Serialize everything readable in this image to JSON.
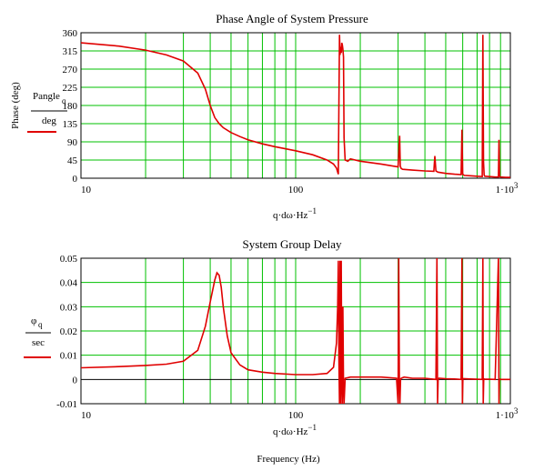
{
  "colors": {
    "grid": "#00c000",
    "axis": "#000000",
    "trace": "#e00000",
    "background": "#ffffff"
  },
  "chart_data": [
    {
      "type": "line",
      "title": "Phase Angle of System Pressure",
      "ylabel": "Phase (deg)",
      "legend_label_top": "Pangle",
      "legend_label_sub": "q",
      "legend_label_bottom": "deg",
      "xlabel": "q·dω·Hz",
      "xlabel_exp": "−1",
      "x_scale": "log",
      "xlim": [
        10,
        1000
      ],
      "ylim": [
        0,
        360
      ],
      "y_ticks": [
        0,
        45,
        90,
        135,
        180,
        225,
        270,
        315,
        360
      ],
      "y_tick_labels": [
        "0",
        "45",
        "90",
        "135",
        "180",
        "225",
        "270",
        "315",
        "360"
      ],
      "x_tick_labels": [
        "10",
        "100",
        "1·10"
      ],
      "x_tick_last_exp": "3",
      "grid": true,
      "series": [
        {
          "x": [
            10,
            15,
            20,
            25,
            30,
            35,
            38,
            40,
            42,
            44,
            46,
            50,
            55,
            60,
            70,
            80,
            100,
            120,
            140,
            150,
            155,
            158,
            160,
            161,
            162,
            163,
            164,
            165,
            166,
            167,
            168,
            170,
            175,
            180,
            200,
            250,
            300,
            305,
            307,
            310,
            315,
            350,
            400,
            440,
            445,
            450,
            460,
            500,
            550,
            590,
            595,
            600,
            610,
            650,
            700,
            740,
            745,
            750,
            755,
            760,
            800,
            850,
            880,
            885,
            890,
            900,
            950,
            1000
          ],
          "y": [
            335,
            327,
            317,
            305,
            290,
            260,
            220,
            180,
            150,
            135,
            125,
            113,
            103,
            95,
            85,
            78,
            68,
            58,
            45,
            35,
            25,
            10,
            355,
            305,
            325,
            310,
            335,
            330,
            320,
            300,
            100,
            45,
            42,
            48,
            42,
            35,
            28,
            105,
            30,
            24,
            22,
            20,
            18,
            17,
            55,
            18,
            15,
            12,
            10,
            9,
            120,
            10,
            7,
            6,
            5,
            4,
            355,
            40,
            8,
            5,
            4,
            3,
            3,
            95,
            5,
            3,
            2,
            2
          ]
        }
      ]
    },
    {
      "type": "line",
      "title": "System Group Delay",
      "legend_label_top": "φ",
      "legend_label_sub": "q",
      "legend_label_bottom": "sec",
      "xlabel": "q·dω·Hz",
      "xlabel_exp": "−1",
      "x_scale": "log",
      "xlim": [
        10,
        1000
      ],
      "ylim": [
        -0.01,
        0.05
      ],
      "y_ticks": [
        -0.01,
        0,
        0.01,
        0.02,
        0.03,
        0.04,
        0.05
      ],
      "y_tick_labels": [
        "-0.01",
        "0",
        "0.01",
        "0.02",
        "0.03",
        "0.04",
        "0.05"
      ],
      "x_tick_labels": [
        "10",
        "100",
        "1·10"
      ],
      "x_tick_last_exp": "3",
      "grid": true,
      "series": [
        {
          "x": [
            10,
            15,
            20,
            25,
            30,
            35,
            38,
            40,
            42,
            43,
            44,
            45,
            46,
            48,
            50,
            55,
            60,
            70,
            80,
            100,
            120,
            140,
            150,
            155,
            157,
            158,
            159,
            160,
            161,
            162,
            163,
            164,
            165,
            166,
            167,
            168,
            170,
            180,
            200,
            250,
            295,
            300,
            302,
            304,
            306,
            308,
            310,
            320,
            350,
            400,
            450,
            455,
            458,
            461,
            465,
            500,
            550,
            590,
            595,
            598,
            601,
            605,
            650,
            700,
            740,
            745,
            748,
            751,
            755,
            760,
            800,
            850,
            880,
            885,
            888,
            891,
            895,
            900,
            950,
            1000
          ],
          "y": [
            0.0048,
            0.0053,
            0.0058,
            0.0063,
            0.0075,
            0.012,
            0.022,
            0.032,
            0.041,
            0.044,
            0.043,
            0.038,
            0.03,
            0.018,
            0.011,
            0.006,
            0.004,
            0.003,
            0.0025,
            0.002,
            0.002,
            0.0025,
            0.005,
            0.015,
            0.03,
            0.049,
            0.01,
            -0.01,
            0.049,
            -0.01,
            0.049,
            0.0,
            -0.01,
            0.03,
            -0.002,
            -0.01,
            0.0005,
            0.001,
            0.001,
            0.001,
            0.0005,
            -0.01,
            0.05,
            0.0,
            -0.01,
            0.0,
            0.0005,
            0.001,
            0.0005,
            0.0005,
            0.0,
            0.05,
            -0.01,
            0.0,
            0.0005,
            0.0003,
            0.0002,
            0.0,
            0.05,
            -0.01,
            0.0,
            0.0003,
            0.0002,
            0.0001,
            0.0,
            0.05,
            -0.01,
            0.0,
            0.0002,
            0.0001,
            0.0001,
            0.0,
            0.05,
            -0.01,
            0.0,
            0.0001,
            0.0001,
            0.0,
            0.0,
            0.0
          ]
        }
      ]
    }
  ],
  "footer": {
    "frequency_label": "Frequency (Hz)"
  }
}
